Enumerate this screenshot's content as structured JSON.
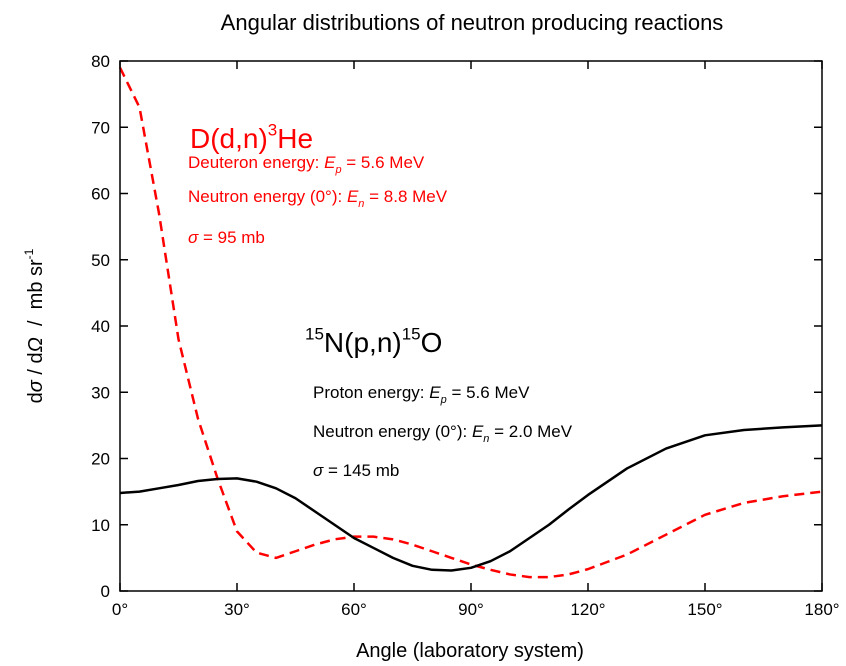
{
  "chart_data": {
    "type": "line",
    "title": "Angular distributions of neutron producing reactions",
    "xlabel": "Angle (laboratory system)",
    "ylabel": [
      {
        "text": "d"
      },
      {
        "text": "σ",
        "style": "italic"
      },
      {
        "text": " / d"
      },
      {
        "text": "Ω",
        "style": "italic"
      },
      {
        "text": "  /  mb sr"
      },
      {
        "text": "-1",
        "style": "sup"
      }
    ],
    "x": [
      0,
      5,
      10,
      15,
      20,
      25,
      30,
      35,
      40,
      45,
      50,
      55,
      60,
      65,
      70,
      75,
      80,
      85,
      90,
      95,
      100,
      105,
      110,
      115,
      120,
      130,
      140,
      150,
      160,
      170,
      180
    ],
    "series": [
      {
        "color": "#ff0000",
        "dash": true,
        "values": [
          79,
          73,
          57,
          38,
          26,
          17,
          9,
          5.8,
          5,
          6,
          7,
          7.8,
          8.2,
          8.2,
          7.8,
          7,
          6,
          5,
          4,
          3.2,
          2.5,
          2.1,
          2.1,
          2.5,
          3.3,
          5.5,
          8.5,
          11.5,
          13.3,
          14.3,
          15
        ]
      },
      {
        "color": "#000000",
        "dash": false,
        "values": [
          14.8,
          15,
          15.5,
          16,
          16.6,
          16.9,
          17,
          16.5,
          15.5,
          14,
          12,
          10,
          8,
          6.5,
          5,
          3.8,
          3.2,
          3.1,
          3.5,
          4.5,
          6,
          8,
          10,
          12.3,
          14.5,
          18.5,
          21.5,
          23.5,
          24.3,
          24.7,
          25
        ]
      }
    ],
    "xlim": [
      0,
      180
    ],
    "ylim": [
      0,
      80
    ],
    "xticks": [
      {
        "value": 0,
        "label": "0°"
      },
      {
        "value": 30,
        "label": "30°"
      },
      {
        "value": 60,
        "label": "60°"
      },
      {
        "value": 90,
        "label": "90°"
      },
      {
        "value": 120,
        "label": "120°"
      },
      {
        "value": 150,
        "label": "150°"
      },
      {
        "value": 180,
        "label": "180°"
      }
    ],
    "yticks": [
      0,
      10,
      20,
      30,
      40,
      50,
      60,
      70,
      80
    ],
    "annotations": [
      {
        "color": "#ff0000",
        "size": "large",
        "segments": [
          {
            "text": "D(d,n)"
          },
          {
            "text": "3",
            "style": "sup"
          },
          {
            "text": "He"
          }
        ]
      },
      {
        "color": "#ff0000",
        "segments": [
          {
            "text": "Deuteron energy: "
          },
          {
            "text": "E",
            "style": "italic"
          },
          {
            "text": "p",
            "style": "sub"
          },
          {
            "text": " = 5.6 MeV"
          }
        ]
      },
      {
        "color": "#ff0000",
        "segments": [
          {
            "text": "Neutron energy (0°): "
          },
          {
            "text": "E",
            "style": "italic"
          },
          {
            "text": "n",
            "style": "sub"
          },
          {
            "text": " = 8.8 MeV"
          }
        ]
      },
      {
        "color": "#ff0000",
        "segments": [
          {
            "text": "σ",
            "style": "italic"
          },
          {
            "text": " = 95 mb"
          }
        ]
      },
      {
        "color": "#000000",
        "size": "large",
        "segments": [
          {
            "text": "15",
            "style": "sup"
          },
          {
            "text": "N(p,n)"
          },
          {
            "text": "15",
            "style": "sup"
          },
          {
            "text": "O"
          }
        ]
      },
      {
        "color": "#000000",
        "segments": [
          {
            "text": "Proton energy: "
          },
          {
            "text": "E",
            "style": "italic"
          },
          {
            "text": "p",
            "style": "sub"
          },
          {
            "text": " = 5.6 MeV"
          }
        ]
      },
      {
        "color": "#000000",
        "segments": [
          {
            "text": "Neutron energy (0°): "
          },
          {
            "text": "E",
            "style": "italic"
          },
          {
            "text": "n",
            "style": "sub"
          },
          {
            "text": " = 2.0 MeV"
          }
        ]
      },
      {
        "color": "#000000",
        "segments": [
          {
            "text": "σ",
            "style": "italic"
          },
          {
            "text": " = 145 mb"
          }
        ]
      }
    ]
  }
}
